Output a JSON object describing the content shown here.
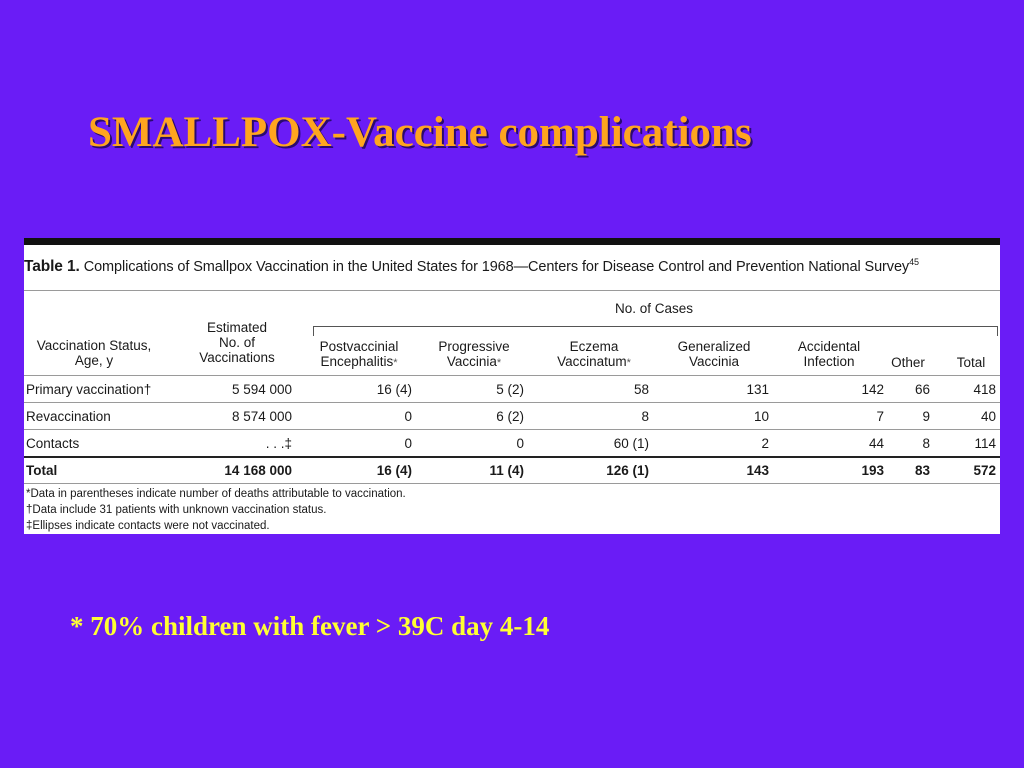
{
  "slide": {
    "title": "SMALLPOX-Vaccine complications",
    "bottom_note": "* 70% children with fever > 39C day 4-14"
  },
  "table": {
    "caption_lead": "Table 1.",
    "caption_text": " Complications of Smallpox Vaccination in the United States for 1968—Centers for Disease Control and Prevention National Survey",
    "caption_ref": "45",
    "group_header": "No. of Cases",
    "columns": [
      {
        "label": "Vaccination Status,\nAge, y",
        "star": ""
      },
      {
        "label": "Estimated\nNo. of\nVaccinations",
        "star": ""
      },
      {
        "label": "Postvaccinial\nEncephalitis",
        "star": "*"
      },
      {
        "label": "Progressive\nVaccinia",
        "star": "*"
      },
      {
        "label": "Eczema\nVaccinatum",
        "star": "*"
      },
      {
        "label": "Generalized\nVaccinia",
        "star": ""
      },
      {
        "label": "Accidental\nInfection",
        "star": ""
      },
      {
        "label": "Other",
        "star": ""
      },
      {
        "label": "Total",
        "star": ""
      }
    ],
    "rows": [
      {
        "cells": [
          "Primary vaccination†",
          "5 594 000",
          "16 (4)",
          "5 (2)",
          "58",
          "131",
          "142",
          "66",
          "418"
        ],
        "bold": false
      },
      {
        "cells": [
          "Revaccination",
          "8 574 000",
          "0",
          "6 (2)",
          "8",
          "10",
          "7",
          "9",
          "40"
        ],
        "bold": false
      },
      {
        "cells": [
          "Contacts",
          ". . .‡",
          "0",
          "0",
          "60 (1)",
          "2",
          "44",
          "8",
          "114"
        ],
        "bold": false
      },
      {
        "cells": [
          "Total",
          "14 168 000",
          "16 (4)",
          "11 (4)",
          "126 (1)",
          "143",
          "193",
          "83",
          "572"
        ],
        "bold": true
      }
    ],
    "footnotes": [
      "*Data in parentheses indicate number of deaths attributable to vaccination.",
      "†Data include 31 patients with unknown vaccination status.",
      "‡Ellipses indicate contacts were not vaccinated."
    ]
  }
}
